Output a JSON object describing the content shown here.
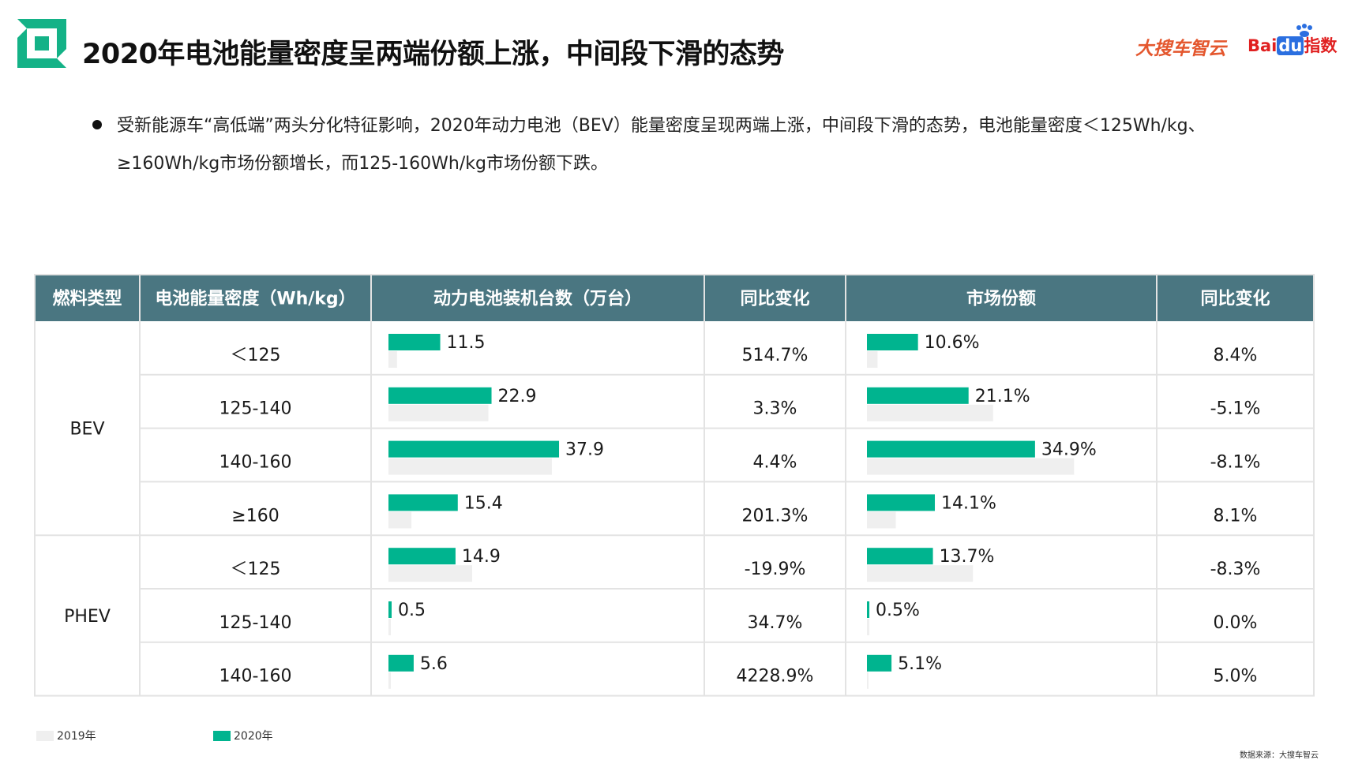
{
  "header": {
    "title": "2020年电池能量密度呈两端份额上涨，中间段下滑的态势",
    "brand_left": "大搜车智云",
    "brand_right_a": "Bai",
    "brand_right_b": "du",
    "brand_right_c": "指数"
  },
  "summary": "受新能源车“高低端”两头分化特征影响，2020年动力电池（BEV）能量密度呈现两端上涨，中间段下滑的态势，电池能量密度＜125Wh/kg、≥160Wh/kg市场份额增长，而125-160Wh/kg市场份额下跌。",
  "colors": {
    "header_bg": "#4a7681",
    "bar_2020": "#00b48f",
    "bar_2019": "#efefef",
    "grid": "#e3e3e3",
    "logo_green": "#14b287"
  },
  "chart_data": {
    "type": "table",
    "columns": [
      "燃料类型",
      "电池能量密度（Wh/kg）",
      "动力电池装机台数（万台）",
      "同比变化",
      "市场份额",
      "同比变化"
    ],
    "legend": [
      "2019年",
      "2020年"
    ],
    "groups": [
      {
        "name": "BEV",
        "rows": [
          0,
          1,
          2,
          3
        ]
      },
      {
        "name": "PHEV",
        "rows": [
          4,
          5,
          6
        ]
      }
    ],
    "rows": [
      {
        "fuel": "BEV",
        "density": "＜125",
        "units_2020": 11.5,
        "units_2020_label": "11.5",
        "units_2019": 1.9,
        "units_yoy": "514.7%",
        "share_2020": 10.6,
        "share_2020_label": "10.6%",
        "share_2019": 2.2,
        "share_yoy": "8.4%"
      },
      {
        "fuel": "BEV",
        "density": "125-140",
        "units_2020": 22.9,
        "units_2020_label": "22.9",
        "units_2019": 22.2,
        "units_yoy": "3.3%",
        "share_2020": 21.1,
        "share_2020_label": "21.1%",
        "share_2019": 26.2,
        "share_yoy": "-5.1%"
      },
      {
        "fuel": "BEV",
        "density": "140-160",
        "units_2020": 37.9,
        "units_2020_label": "37.9",
        "units_2019": 36.3,
        "units_yoy": "4.4%",
        "share_2020": 34.9,
        "share_2020_label": "34.9%",
        "share_2019": 43.0,
        "share_yoy": "-8.1%"
      },
      {
        "fuel": "BEV",
        "density": "≥160",
        "units_2020": 15.4,
        "units_2020_label": "15.4",
        "units_2019": 5.1,
        "units_yoy": "201.3%",
        "share_2020": 14.1,
        "share_2020_label": "14.1%",
        "share_2019": 6.0,
        "share_yoy": "8.1%"
      },
      {
        "fuel": "PHEV",
        "density": "＜125",
        "units_2020": 14.9,
        "units_2020_label": "14.9",
        "units_2019": 18.6,
        "units_yoy": "-19.9%",
        "share_2020": 13.7,
        "share_2020_label": "13.7%",
        "share_2019": 22.0,
        "share_yoy": "-8.3%"
      },
      {
        "fuel": "PHEV",
        "density": "125-140",
        "units_2020": 0.5,
        "units_2020_label": "0.5",
        "units_2019": 0.37,
        "units_yoy": "34.7%",
        "share_2020": 0.5,
        "share_2020_label": "0.5%",
        "share_2019": 0.5,
        "share_yoy": "0.0%"
      },
      {
        "fuel": "PHEV",
        "density": "140-160",
        "units_2020": 5.6,
        "units_2020_label": "5.6",
        "units_2019": 0.13,
        "units_yoy": "4228.9%",
        "share_2020": 5.1,
        "share_2020_label": "5.1%",
        "share_2019": 0.1,
        "share_yoy": "5.0%"
      }
    ]
  },
  "legend_labels": {
    "y2019": "2019年",
    "y2020": "2020年"
  },
  "source": "数据来源：大搜车智云"
}
